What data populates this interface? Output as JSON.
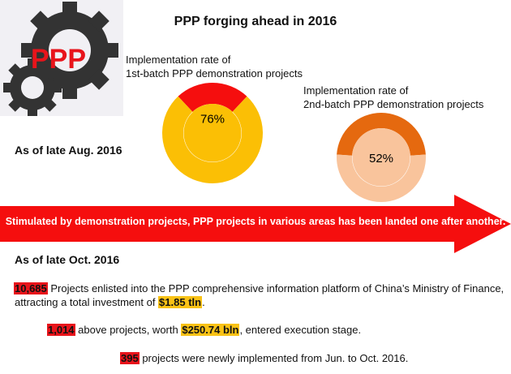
{
  "title": "PPP forging ahead in 2016",
  "logo": {
    "text": "PPP"
  },
  "chart_data": [
    {
      "type": "pie",
      "title": "Implementation rate of 1st-batch PPP demonstration projects",
      "title_lines": [
        "Implementation rate of",
        "1st-batch PPP demonstration projects"
      ],
      "value": 76,
      "value_label": "76%",
      "colors": {
        "implemented": "#fbbf05",
        "remaining": "#f50e0e"
      }
    },
    {
      "type": "pie",
      "title": "Implementation rate of 2nd-batch PPP demonstration projects",
      "title_lines": [
        "Implementation rate of",
        "2nd-batch PPP demonstration projects"
      ],
      "value": 52,
      "value_label": "52%",
      "colors": {
        "implemented": "#f9c49c",
        "remaining": "#e5690f"
      }
    }
  ],
  "date_aug": "As of late Aug. 2016",
  "arrow_text": "Stimulated by demonstration projects, PPP projects in various areas has been landed one after another.",
  "date_oct": "As of late Oct.  2016",
  "stats": {
    "s1": {
      "number": "10,685",
      "text_a": " Projects enlisted into the PPP comprehensive information platform of China’s Ministry of Finance,",
      "text_b": "attracting  a total investment of ",
      "amount": "$1.85 tln",
      "text_c": "."
    },
    "s2": {
      "number": "1,014",
      "text_a": " above projects, worth ",
      "amount": "$250.74 bln",
      "text_b": ", entered execution stage."
    },
    "s3": {
      "number": "395",
      "text_a": " projects were newly implemented from Jun. to Oct.  2016."
    }
  },
  "colors": {
    "arrow": "#f50e0e",
    "logo_gear": "#333333",
    "logo_text": "#e8141b",
    "highlight_red": "#e8141b",
    "highlight_yellow": "#f9c216"
  }
}
